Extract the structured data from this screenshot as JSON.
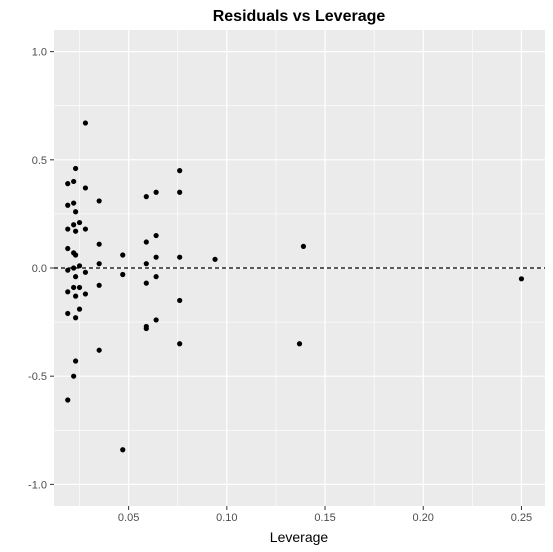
{
  "chart_data": {
    "type": "scatter",
    "title": "Residuals vs Leverage",
    "xlabel": "Leverage",
    "ylabel": "",
    "xlim": [
      0.012,
      0.262
    ],
    "ylim": [
      -1.1,
      1.1
    ],
    "x_ticks": [
      0.05,
      0.1,
      0.15,
      0.2,
      0.25
    ],
    "x_tick_labels": [
      "0.05",
      "0.10",
      "0.15",
      "0.20",
      "0.25"
    ],
    "y_ticks": [
      -1.0,
      -0.5,
      0.0,
      0.5,
      1.0
    ],
    "y_tick_labels": [
      "-1.0",
      "-0.5",
      "0.0",
      "0.5",
      "1.0"
    ],
    "grid": true,
    "reference_line": {
      "y": 0,
      "style": "dashed"
    },
    "colors": {
      "panel": "#ebebeb",
      "grid": "#ffffff",
      "point": "#000000"
    },
    "points": [
      {
        "x": 0.019,
        "y": 0.39
      },
      {
        "x": 0.019,
        "y": 0.29
      },
      {
        "x": 0.019,
        "y": 0.18
      },
      {
        "x": 0.019,
        "y": 0.09
      },
      {
        "x": 0.019,
        "y": -0.01
      },
      {
        "x": 0.019,
        "y": -0.11
      },
      {
        "x": 0.019,
        "y": -0.21
      },
      {
        "x": 0.019,
        "y": -0.61
      },
      {
        "x": 0.022,
        "y": 0.4
      },
      {
        "x": 0.022,
        "y": 0.3
      },
      {
        "x": 0.022,
        "y": 0.2
      },
      {
        "x": 0.022,
        "y": 0.07
      },
      {
        "x": 0.022,
        "y": 0.0
      },
      {
        "x": 0.022,
        "y": -0.09
      },
      {
        "x": 0.022,
        "y": -0.5
      },
      {
        "x": 0.023,
        "y": 0.46
      },
      {
        "x": 0.023,
        "y": 0.26
      },
      {
        "x": 0.023,
        "y": 0.17
      },
      {
        "x": 0.023,
        "y": 0.06
      },
      {
        "x": 0.023,
        "y": -0.04
      },
      {
        "x": 0.023,
        "y": -0.13
      },
      {
        "x": 0.023,
        "y": -0.23
      },
      {
        "x": 0.023,
        "y": -0.43
      },
      {
        "x": 0.025,
        "y": 0.21
      },
      {
        "x": 0.025,
        "y": 0.01
      },
      {
        "x": 0.025,
        "y": -0.09
      },
      {
        "x": 0.025,
        "y": -0.19
      },
      {
        "x": 0.028,
        "y": 0.67
      },
      {
        "x": 0.028,
        "y": 0.37
      },
      {
        "x": 0.028,
        "y": 0.18
      },
      {
        "x": 0.028,
        "y": -0.02
      },
      {
        "x": 0.028,
        "y": -0.12
      },
      {
        "x": 0.035,
        "y": 0.31
      },
      {
        "x": 0.035,
        "y": 0.11
      },
      {
        "x": 0.035,
        "y": 0.02
      },
      {
        "x": 0.035,
        "y": -0.08
      },
      {
        "x": 0.035,
        "y": -0.38
      },
      {
        "x": 0.047,
        "y": 0.06
      },
      {
        "x": 0.047,
        "y": -0.03
      },
      {
        "x": 0.047,
        "y": -0.84
      },
      {
        "x": 0.059,
        "y": 0.33
      },
      {
        "x": 0.059,
        "y": 0.12
      },
      {
        "x": 0.059,
        "y": 0.02
      },
      {
        "x": 0.059,
        "y": -0.07
      },
      {
        "x": 0.059,
        "y": -0.27
      },
      {
        "x": 0.059,
        "y": -0.28
      },
      {
        "x": 0.064,
        "y": 0.35
      },
      {
        "x": 0.064,
        "y": 0.15
      },
      {
        "x": 0.064,
        "y": 0.05
      },
      {
        "x": 0.064,
        "y": -0.04
      },
      {
        "x": 0.064,
        "y": -0.24
      },
      {
        "x": 0.076,
        "y": 0.45
      },
      {
        "x": 0.076,
        "y": 0.35
      },
      {
        "x": 0.076,
        "y": 0.05
      },
      {
        "x": 0.076,
        "y": -0.15
      },
      {
        "x": 0.076,
        "y": -0.35
      },
      {
        "x": 0.094,
        "y": 0.04
      },
      {
        "x": 0.137,
        "y": -0.35
      },
      {
        "x": 0.139,
        "y": 0.1
      },
      {
        "x": 0.25,
        "y": -0.05
      }
    ]
  }
}
